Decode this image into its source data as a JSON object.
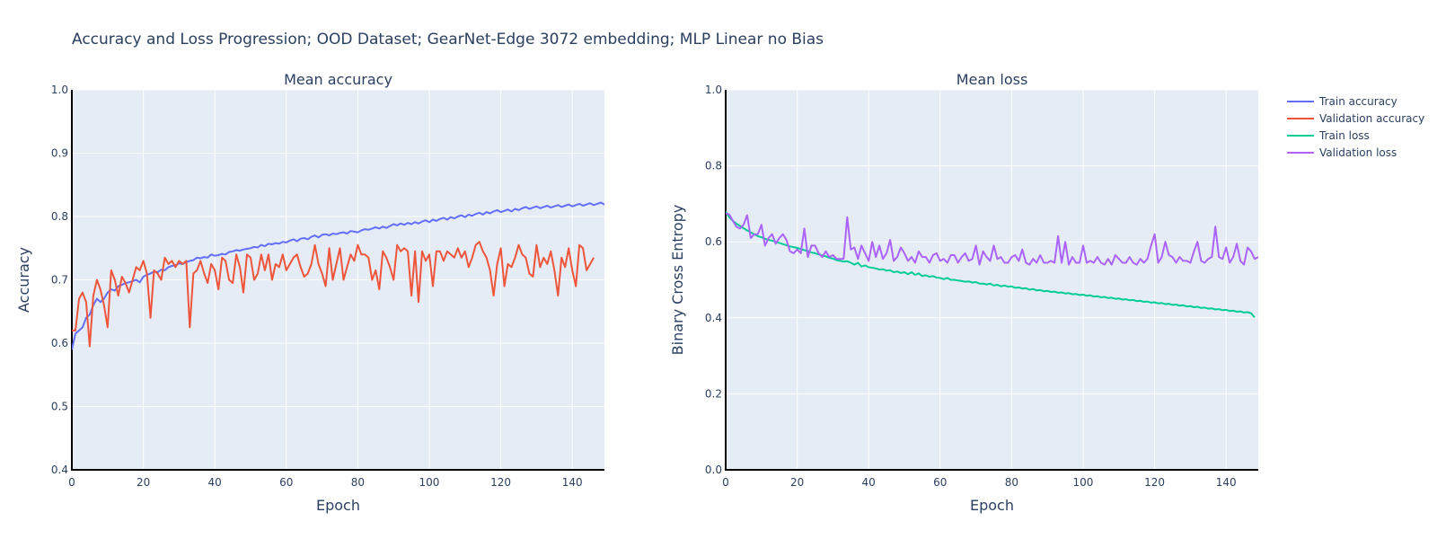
{
  "title": "Accuracy and Loss Progression; OOD Dataset; GearNet-Edge 3072 embedding; MLP Linear no Bias",
  "colors": {
    "train_accuracy": "#636efa",
    "validation_accuracy": "#ef553b",
    "train_loss": "#00cc96",
    "validation_loss": "#ab63fa",
    "plot_bg": "#e5ecf6"
  },
  "legend": [
    "Train accuracy",
    "Validation accuracy",
    "Train loss",
    "Validation loss"
  ],
  "chart_data": [
    {
      "type": "line",
      "title": "Mean accuracy",
      "xlabel": "Epoch",
      "ylabel": "Accuracy",
      "xlim": [
        0,
        149
      ],
      "ylim": [
        0.4,
        1.0
      ],
      "xticks": [
        0,
        20,
        40,
        60,
        80,
        100,
        120,
        140
      ],
      "yticks": [
        "0.4",
        "0.5",
        "0.6",
        "0.7",
        "0.8",
        "0.9",
        "1.0"
      ],
      "series": [
        {
          "name": "Train accuracy",
          "values": [
            0.59,
            0.615,
            0.62,
            0.625,
            0.64,
            0.645,
            0.66,
            0.67,
            0.665,
            0.67,
            0.68,
            0.685,
            0.683,
            0.69,
            0.692,
            0.695,
            0.696,
            0.698,
            0.7,
            0.696,
            0.705,
            0.708,
            0.71,
            0.713,
            0.712,
            0.716,
            0.715,
            0.72,
            0.722,
            0.723,
            0.726,
            0.725,
            0.728,
            0.73,
            0.731,
            0.735,
            0.734,
            0.736,
            0.735,
            0.74,
            0.738,
            0.739,
            0.741,
            0.74,
            0.744,
            0.745,
            0.747,
            0.746,
            0.748,
            0.749,
            0.75,
            0.752,
            0.751,
            0.755,
            0.753,
            0.757,
            0.756,
            0.758,
            0.757,
            0.76,
            0.759,
            0.762,
            0.764,
            0.761,
            0.765,
            0.766,
            0.764,
            0.768,
            0.77,
            0.767,
            0.771,
            0.772,
            0.77,
            0.773,
            0.772,
            0.774,
            0.775,
            0.773,
            0.777,
            0.776,
            0.775,
            0.778,
            0.78,
            0.779,
            0.781,
            0.783,
            0.781,
            0.784,
            0.782,
            0.785,
            0.788,
            0.786,
            0.789,
            0.787,
            0.79,
            0.788,
            0.791,
            0.789,
            0.792,
            0.794,
            0.791,
            0.795,
            0.793,
            0.796,
            0.798,
            0.795,
            0.799,
            0.797,
            0.8,
            0.802,
            0.799,
            0.803,
            0.801,
            0.804,
            0.806,
            0.803,
            0.807,
            0.805,
            0.808,
            0.81,
            0.807,
            0.809,
            0.811,
            0.808,
            0.812,
            0.81,
            0.813,
            0.815,
            0.812,
            0.814,
            0.816,
            0.813,
            0.815,
            0.817,
            0.814,
            0.816,
            0.818,
            0.815,
            0.817,
            0.819,
            0.816,
            0.818,
            0.82,
            0.817,
            0.819,
            0.821,
            0.818,
            0.82,
            0.822,
            0.819,
            0.821
          ]
        },
        {
          "name": "Validation accuracy",
          "values": [
            0.62,
            0.62,
            0.67,
            0.68,
            0.665,
            0.595,
            0.675,
            0.7,
            0.685,
            0.66,
            0.625,
            0.715,
            0.7,
            0.675,
            0.705,
            0.695,
            0.68,
            0.7,
            0.72,
            0.715,
            0.73,
            0.71,
            0.64,
            0.715,
            0.71,
            0.7,
            0.735,
            0.725,
            0.73,
            0.72,
            0.73,
            0.725,
            0.73,
            0.625,
            0.71,
            0.715,
            0.73,
            0.71,
            0.695,
            0.725,
            0.715,
            0.685,
            0.735,
            0.73,
            0.7,
            0.695,
            0.74,
            0.72,
            0.68,
            0.74,
            0.735,
            0.7,
            0.71,
            0.74,
            0.715,
            0.74,
            0.7,
            0.725,
            0.72,
            0.74,
            0.715,
            0.725,
            0.735,
            0.74,
            0.72,
            0.705,
            0.71,
            0.725,
            0.755,
            0.725,
            0.71,
            0.69,
            0.75,
            0.7,
            0.725,
            0.75,
            0.7,
            0.72,
            0.74,
            0.73,
            0.755,
            0.74,
            0.74,
            0.735,
            0.7,
            0.715,
            0.685,
            0.745,
            0.735,
            0.72,
            0.7,
            0.755,
            0.745,
            0.75,
            0.745,
            0.675,
            0.745,
            0.665,
            0.745,
            0.73,
            0.74,
            0.69,
            0.745,
            0.745,
            0.73,
            0.745,
            0.74,
            0.735,
            0.75,
            0.735,
            0.745,
            0.72,
            0.735,
            0.755,
            0.76,
            0.745,
            0.735,
            0.715,
            0.675,
            0.725,
            0.75,
            0.69,
            0.725,
            0.72,
            0.735,
            0.755,
            0.74,
            0.735,
            0.71,
            0.705,
            0.755,
            0.72,
            0.735,
            0.725,
            0.745,
            0.715,
            0.675,
            0.735,
            0.72,
            0.75,
            0.715,
            0.69,
            0.755,
            0.75,
            0.715,
            0.725,
            0.735
          ]
        }
      ]
    },
    {
      "type": "line",
      "title": "Mean loss",
      "xlabel": "Epoch",
      "ylabel": "Binary Cross Entropy",
      "xlim": [
        0,
        149
      ],
      "ylim": [
        0.0,
        1.0
      ],
      "xticks": [
        0,
        20,
        40,
        60,
        80,
        100,
        120,
        140
      ],
      "yticks": [
        "0.0",
        "0.2",
        "0.4",
        "0.6",
        "0.8",
        "1.0"
      ],
      "series": [
        {
          "name": "Train loss",
          "values": [
            0.68,
            0.665,
            0.655,
            0.648,
            0.642,
            0.636,
            0.63,
            0.625,
            0.62,
            0.615,
            0.612,
            0.608,
            0.605,
            0.603,
            0.6,
            0.597,
            0.594,
            0.591,
            0.588,
            0.586,
            0.584,
            0.581,
            0.578,
            0.576,
            0.572,
            0.57,
            0.567,
            0.564,
            0.562,
            0.558,
            0.556,
            0.552,
            0.55,
            0.548,
            0.549,
            0.545,
            0.54,
            0.545,
            0.535,
            0.538,
            0.533,
            0.532,
            0.53,
            0.527,
            0.528,
            0.524,
            0.525,
            0.52,
            0.522,
            0.518,
            0.52,
            0.515,
            0.52,
            0.513,
            0.517,
            0.51,
            0.512,
            0.508,
            0.51,
            0.506,
            0.505,
            0.502,
            0.505,
            0.5,
            0.5,
            0.498,
            0.497,
            0.495,
            0.496,
            0.493,
            0.494,
            0.49,
            0.49,
            0.488,
            0.49,
            0.485,
            0.487,
            0.483,
            0.485,
            0.482,
            0.483,
            0.479,
            0.48,
            0.477,
            0.478,
            0.474,
            0.476,
            0.472,
            0.473,
            0.47,
            0.471,
            0.468,
            0.469,
            0.466,
            0.467,
            0.464,
            0.465,
            0.462,
            0.463,
            0.46,
            0.461,
            0.458,
            0.459,
            0.456,
            0.457,
            0.454,
            0.455,
            0.452,
            0.453,
            0.45,
            0.451,
            0.448,
            0.449,
            0.446,
            0.447,
            0.444,
            0.445,
            0.442,
            0.443,
            0.44,
            0.441,
            0.438,
            0.439,
            0.436,
            0.437,
            0.434,
            0.435,
            0.432,
            0.433,
            0.43,
            0.431,
            0.428,
            0.429,
            0.426,
            0.427,
            0.424,
            0.425,
            0.422,
            0.423,
            0.42,
            0.421,
            0.418,
            0.419,
            0.416,
            0.417,
            0.414,
            0.415,
            0.412,
            0.401
          ]
        },
        {
          "name": "Validation loss",
          "values": [
            0.675,
            0.672,
            0.655,
            0.64,
            0.635,
            0.645,
            0.67,
            0.61,
            0.62,
            0.62,
            0.645,
            0.59,
            0.61,
            0.62,
            0.595,
            0.61,
            0.62,
            0.605,
            0.575,
            0.57,
            0.58,
            0.57,
            0.635,
            0.56,
            0.59,
            0.59,
            0.57,
            0.56,
            0.575,
            0.56,
            0.565,
            0.555,
            0.555,
            0.555,
            0.665,
            0.58,
            0.585,
            0.555,
            0.59,
            0.57,
            0.55,
            0.6,
            0.56,
            0.59,
            0.555,
            0.57,
            0.605,
            0.55,
            0.56,
            0.585,
            0.57,
            0.55,
            0.56,
            0.545,
            0.575,
            0.56,
            0.56,
            0.545,
            0.565,
            0.57,
            0.55,
            0.555,
            0.545,
            0.565,
            0.565,
            0.545,
            0.56,
            0.57,
            0.55,
            0.555,
            0.59,
            0.54,
            0.575,
            0.56,
            0.55,
            0.59,
            0.555,
            0.56,
            0.545,
            0.545,
            0.56,
            0.565,
            0.55,
            0.58,
            0.545,
            0.54,
            0.555,
            0.545,
            0.565,
            0.545,
            0.545,
            0.55,
            0.545,
            0.615,
            0.545,
            0.6,
            0.54,
            0.56,
            0.545,
            0.545,
            0.59,
            0.545,
            0.55,
            0.545,
            0.56,
            0.545,
            0.54,
            0.555,
            0.54,
            0.565,
            0.555,
            0.545,
            0.545,
            0.56,
            0.545,
            0.54,
            0.555,
            0.545,
            0.555,
            0.59,
            0.62,
            0.545,
            0.56,
            0.6,
            0.565,
            0.56,
            0.545,
            0.56,
            0.55,
            0.55,
            0.545,
            0.575,
            0.6,
            0.55,
            0.545,
            0.555,
            0.56,
            0.64,
            0.56,
            0.555,
            0.585,
            0.545,
            0.56,
            0.595,
            0.55,
            0.54,
            0.585,
            0.575,
            0.555,
            0.56
          ]
        }
      ]
    }
  ]
}
